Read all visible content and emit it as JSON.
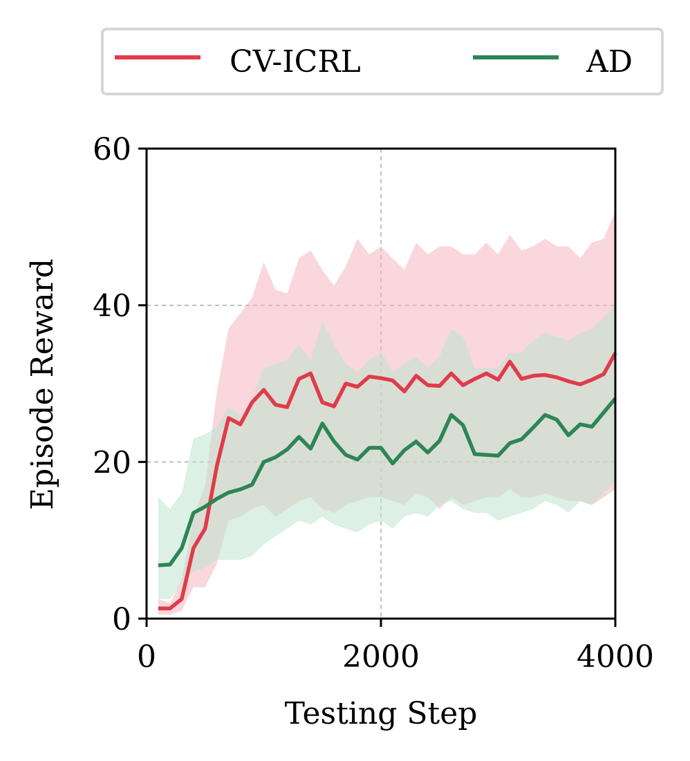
{
  "chart_data": {
    "type": "line",
    "xlabel": "Testing Step",
    "ylabel": "Episode Reward",
    "xlim": [
      0,
      4000
    ],
    "ylim": [
      0,
      60
    ],
    "xticks": [
      0,
      2000,
      4000
    ],
    "xtick_labels": [
      "0",
      "2000",
      "4000"
    ],
    "yticks": [
      0,
      20,
      40,
      60
    ],
    "ytick_labels": [
      "0",
      "20",
      "40",
      "60"
    ],
    "grid": true,
    "legend_position": "top-center",
    "x": [
      100,
      200,
      300,
      400,
      500,
      600,
      700,
      800,
      900,
      1000,
      1100,
      1200,
      1300,
      1400,
      1500,
      1600,
      1700,
      1800,
      1900,
      2000,
      2100,
      2200,
      2300,
      2400,
      2500,
      2600,
      2700,
      2800,
      2900,
      3000,
      3100,
      3200,
      3300,
      3400,
      3500,
      3600,
      3700,
      3800,
      3900,
      4000
    ],
    "series": [
      {
        "name": "CV-ICRL",
        "color": "#e03c4b",
        "band_color": "#f4b6bf",
        "values": [
          1.3,
          1.3,
          2.5,
          9.0,
          11.5,
          19.5,
          25.6,
          24.8,
          27.6,
          29.2,
          27.3,
          27.0,
          30.6,
          31.3,
          27.6,
          27.1,
          30.0,
          29.6,
          30.9,
          30.7,
          30.4,
          29.0,
          31.0,
          29.8,
          29.7,
          31.3,
          29.8,
          30.6,
          31.3,
          30.5,
          32.8,
          30.6,
          31.0,
          31.1,
          30.8,
          30.3,
          29.9,
          30.5,
          31.2,
          33.9
        ],
        "upper": [
          2.5,
          2.0,
          5.0,
          13.0,
          17.0,
          29.0,
          37.0,
          39.0,
          41.0,
          45.5,
          42.0,
          41.5,
          46.0,
          47.0,
          44.5,
          42.5,
          45.0,
          48.5,
          46.5,
          47.5,
          46.0,
          44.5,
          48.0,
          46.5,
          47.5,
          47.5,
          46.5,
          46.5,
          48.0,
          46.5,
          49.0,
          47.0,
          47.5,
          48.5,
          47.5,
          47.5,
          46.0,
          48.0,
          48.5,
          52.0
        ],
        "lower": [
          0.5,
          0.5,
          1.0,
          4.0,
          4.0,
          7.0,
          12.5,
          13.0,
          14.0,
          14.5,
          13.0,
          14.0,
          15.0,
          15.5,
          14.0,
          13.5,
          14.5,
          15.0,
          15.5,
          15.5,
          15.0,
          14.5,
          16.0,
          15.5,
          14.0,
          15.5,
          14.5,
          15.0,
          15.5,
          15.5,
          16.5,
          15.5,
          15.5,
          16.0,
          15.5,
          15.0,
          15.0,
          14.5,
          15.5,
          16.5
        ]
      },
      {
        "name": "AD",
        "color": "#2e8555",
        "band_color": "#bfe3cf",
        "values": [
          6.8,
          6.9,
          9.0,
          13.5,
          14.3,
          15.3,
          16.1,
          16.5,
          17.1,
          20.0,
          20.6,
          21.6,
          23.2,
          21.7,
          24.9,
          22.6,
          20.9,
          20.3,
          21.8,
          21.8,
          19.8,
          21.5,
          22.6,
          21.2,
          22.7,
          26.0,
          24.7,
          21.0,
          20.9,
          20.8,
          22.4,
          22.9,
          24.4,
          26.0,
          25.4,
          23.4,
          24.8,
          24.5,
          26.3,
          28.1
        ],
        "upper": [
          15.5,
          14.0,
          16.0,
          23.0,
          23.5,
          24.5,
          27.0,
          26.0,
          28.0,
          32.0,
          32.5,
          33.0,
          35.0,
          33.0,
          38.0,
          35.0,
          32.5,
          31.5,
          33.0,
          34.0,
          31.5,
          32.5,
          33.5,
          32.0,
          33.5,
          37.0,
          36.0,
          32.0,
          32.0,
          32.0,
          34.0,
          34.0,
          35.5,
          36.5,
          36.0,
          35.5,
          36.5,
          37.0,
          38.5,
          40.0
        ],
        "lower": [
          2.5,
          2.5,
          4.5,
          6.0,
          6.5,
          7.5,
          7.5,
          7.5,
          8.0,
          9.5,
          10.5,
          11.5,
          12.5,
          12.0,
          13.0,
          12.0,
          11.5,
          11.0,
          12.0,
          12.5,
          11.5,
          13.0,
          13.5,
          13.0,
          14.5,
          15.0,
          14.0,
          13.5,
          13.5,
          12.5,
          13.0,
          13.5,
          14.0,
          15.0,
          14.5,
          13.5,
          15.0,
          14.5,
          16.0,
          17.5
        ]
      }
    ]
  }
}
